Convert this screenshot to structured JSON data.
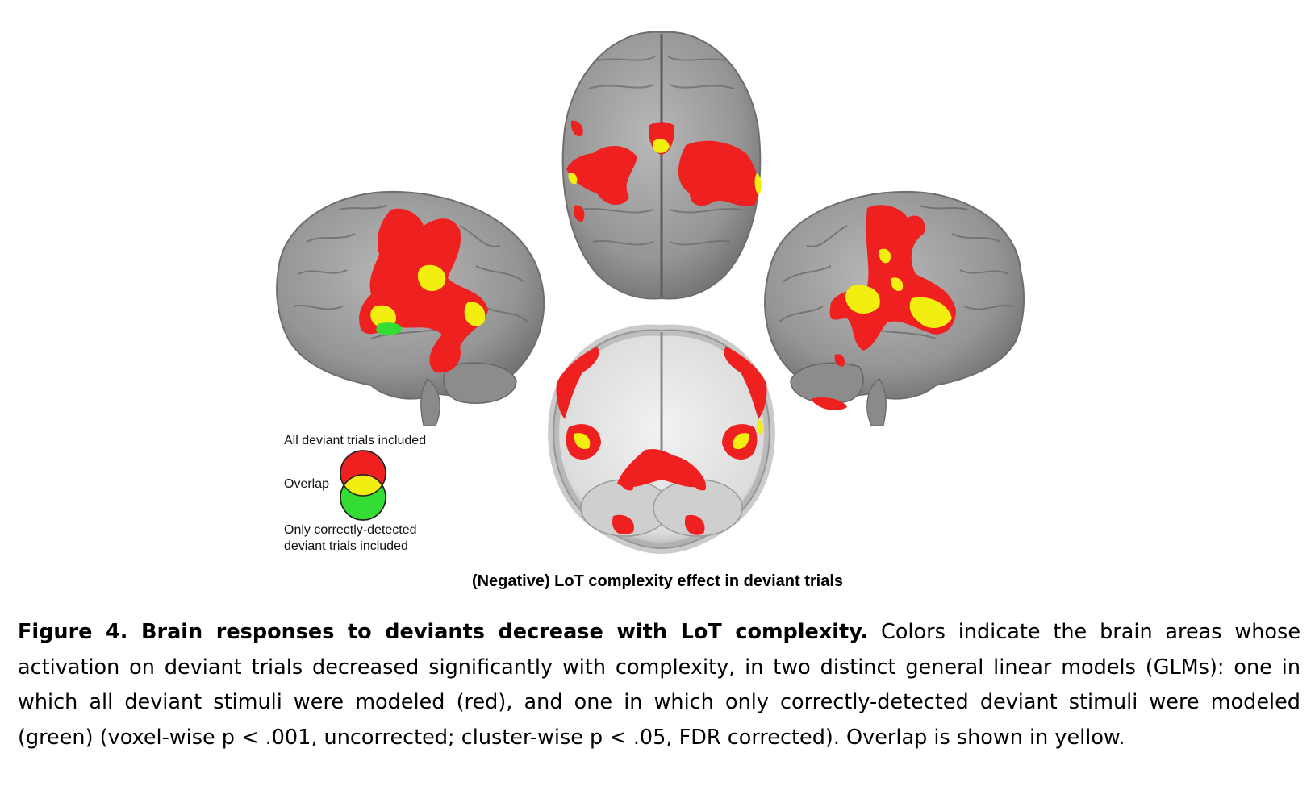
{
  "legend": {
    "all_label": "All deviant trials included",
    "overlap_label": "Overlap",
    "correct_label_line1": "Only correctly-detected",
    "correct_label_line2": "deviant trials included"
  },
  "panel_title": "(Negative) LoT complexity effect in deviant trials",
  "caption": {
    "lead": "Figure 4. Brain responses to deviants decrease with LoT complexity.",
    "body": " Colors indicate the brain areas whose activation on deviant trials decreased significantly with complexity, in two distinct general linear models (GLMs): one in which all deviant stimuli were modeled (red), and one in which only correctly-detected deviant stimuli were modeled (green) (voxel-wise p < .001, uncorrected; cluster-wise p < .05, FDR corrected). Overlap is shown in yellow."
  },
  "colors": {
    "all_deviant": "#ee2020",
    "overlap": "#f2ee10",
    "correct_only": "#33dd33",
    "brain_gray": "#9a9a9a",
    "white_matter": "#e8e8e8"
  }
}
